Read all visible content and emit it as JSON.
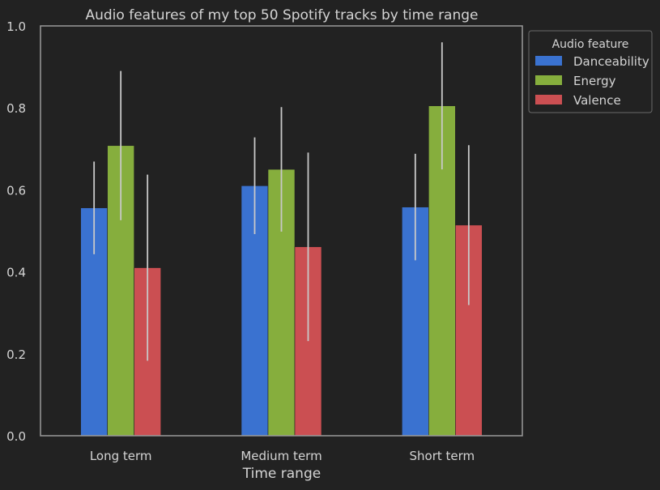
{
  "chart_data": {
    "type": "bar",
    "title": "Audio features of my top 50 Spotify tracks by time range",
    "xlabel": "Time range",
    "ylabel": "",
    "ylim": [
      0,
      1.0
    ],
    "yticks": [
      "0.0",
      "0.2",
      "0.4",
      "0.6",
      "0.8",
      "1.0"
    ],
    "categories": [
      "Long term",
      "Medium term",
      "Short term"
    ],
    "series": [
      {
        "name": "Danceability",
        "color": "#3a72d0",
        "values": [
          0.556,
          0.61,
          0.558
        ],
        "error": [
          0.113,
          0.118,
          0.13
        ]
      },
      {
        "name": "Energy",
        "color": "#86ae3d",
        "values": [
          0.708,
          0.65,
          0.805
        ],
        "error": [
          0.182,
          0.152,
          0.155
        ]
      },
      {
        "name": "Valence",
        "color": "#cb4f52",
        "values": [
          0.41,
          0.461,
          0.514
        ],
        "error": [
          0.227,
          0.23,
          0.195
        ]
      }
    ],
    "legend_title": "Audio feature",
    "legend_position": "outside top-right",
    "grid": false
  }
}
